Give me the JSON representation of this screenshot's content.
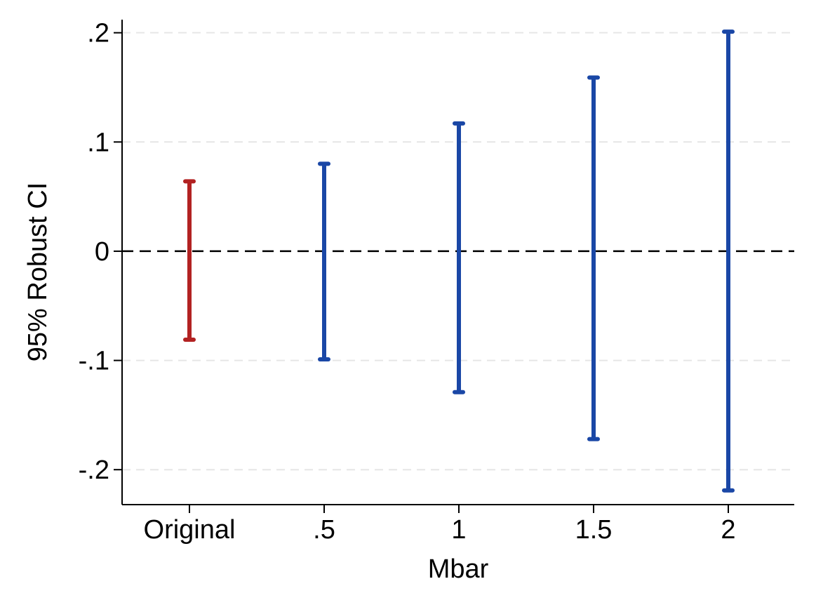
{
  "chart_data": {
    "type": "errorbar",
    "xlabel": "Mbar",
    "ylabel": "95% Robust CI",
    "categories": [
      "Original",
      ".5",
      "1",
      "1.5",
      "2"
    ],
    "lower": [
      -0.081,
      -0.099,
      -0.129,
      -0.172,
      -0.219
    ],
    "upper": [
      0.064,
      0.08,
      0.117,
      0.159,
      0.201
    ],
    "colors": [
      "#b22222",
      "#1a47a6",
      "#1a47a6",
      "#1a47a6",
      "#1a47a6"
    ],
    "ylim": [
      -0.232,
      0.212
    ],
    "yticks": [
      -0.2,
      -0.1,
      0,
      0.1,
      0.2
    ],
    "ytick_labels": [
      "-.2",
      "-.1",
      "0",
      ".1",
      ".2"
    ],
    "reference_line": {
      "y": 0,
      "style": "dashed",
      "color": "#000000"
    },
    "grid": true,
    "grid_color": "#e6e6e6"
  }
}
